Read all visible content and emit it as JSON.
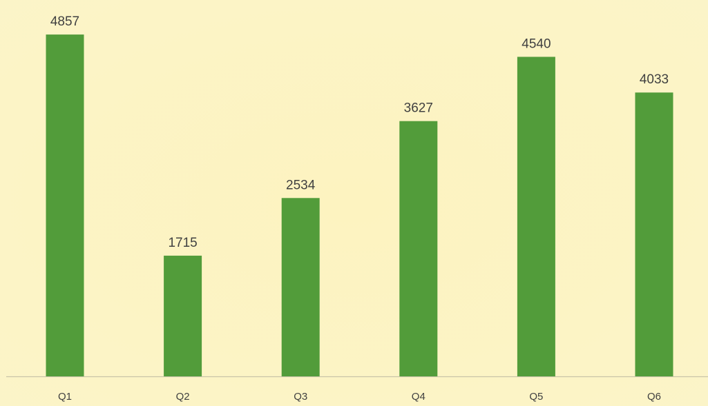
{
  "chart_data": {
    "type": "bar",
    "categories": [
      "Q1",
      "Q2",
      "Q3",
      "Q4",
      "Q5",
      "Q6"
    ],
    "values": [
      4857,
      1715,
      2534,
      3627,
      4540,
      4033
    ],
    "color": "#529c3a",
    "ylim": [
      0,
      5000
    ]
  }
}
